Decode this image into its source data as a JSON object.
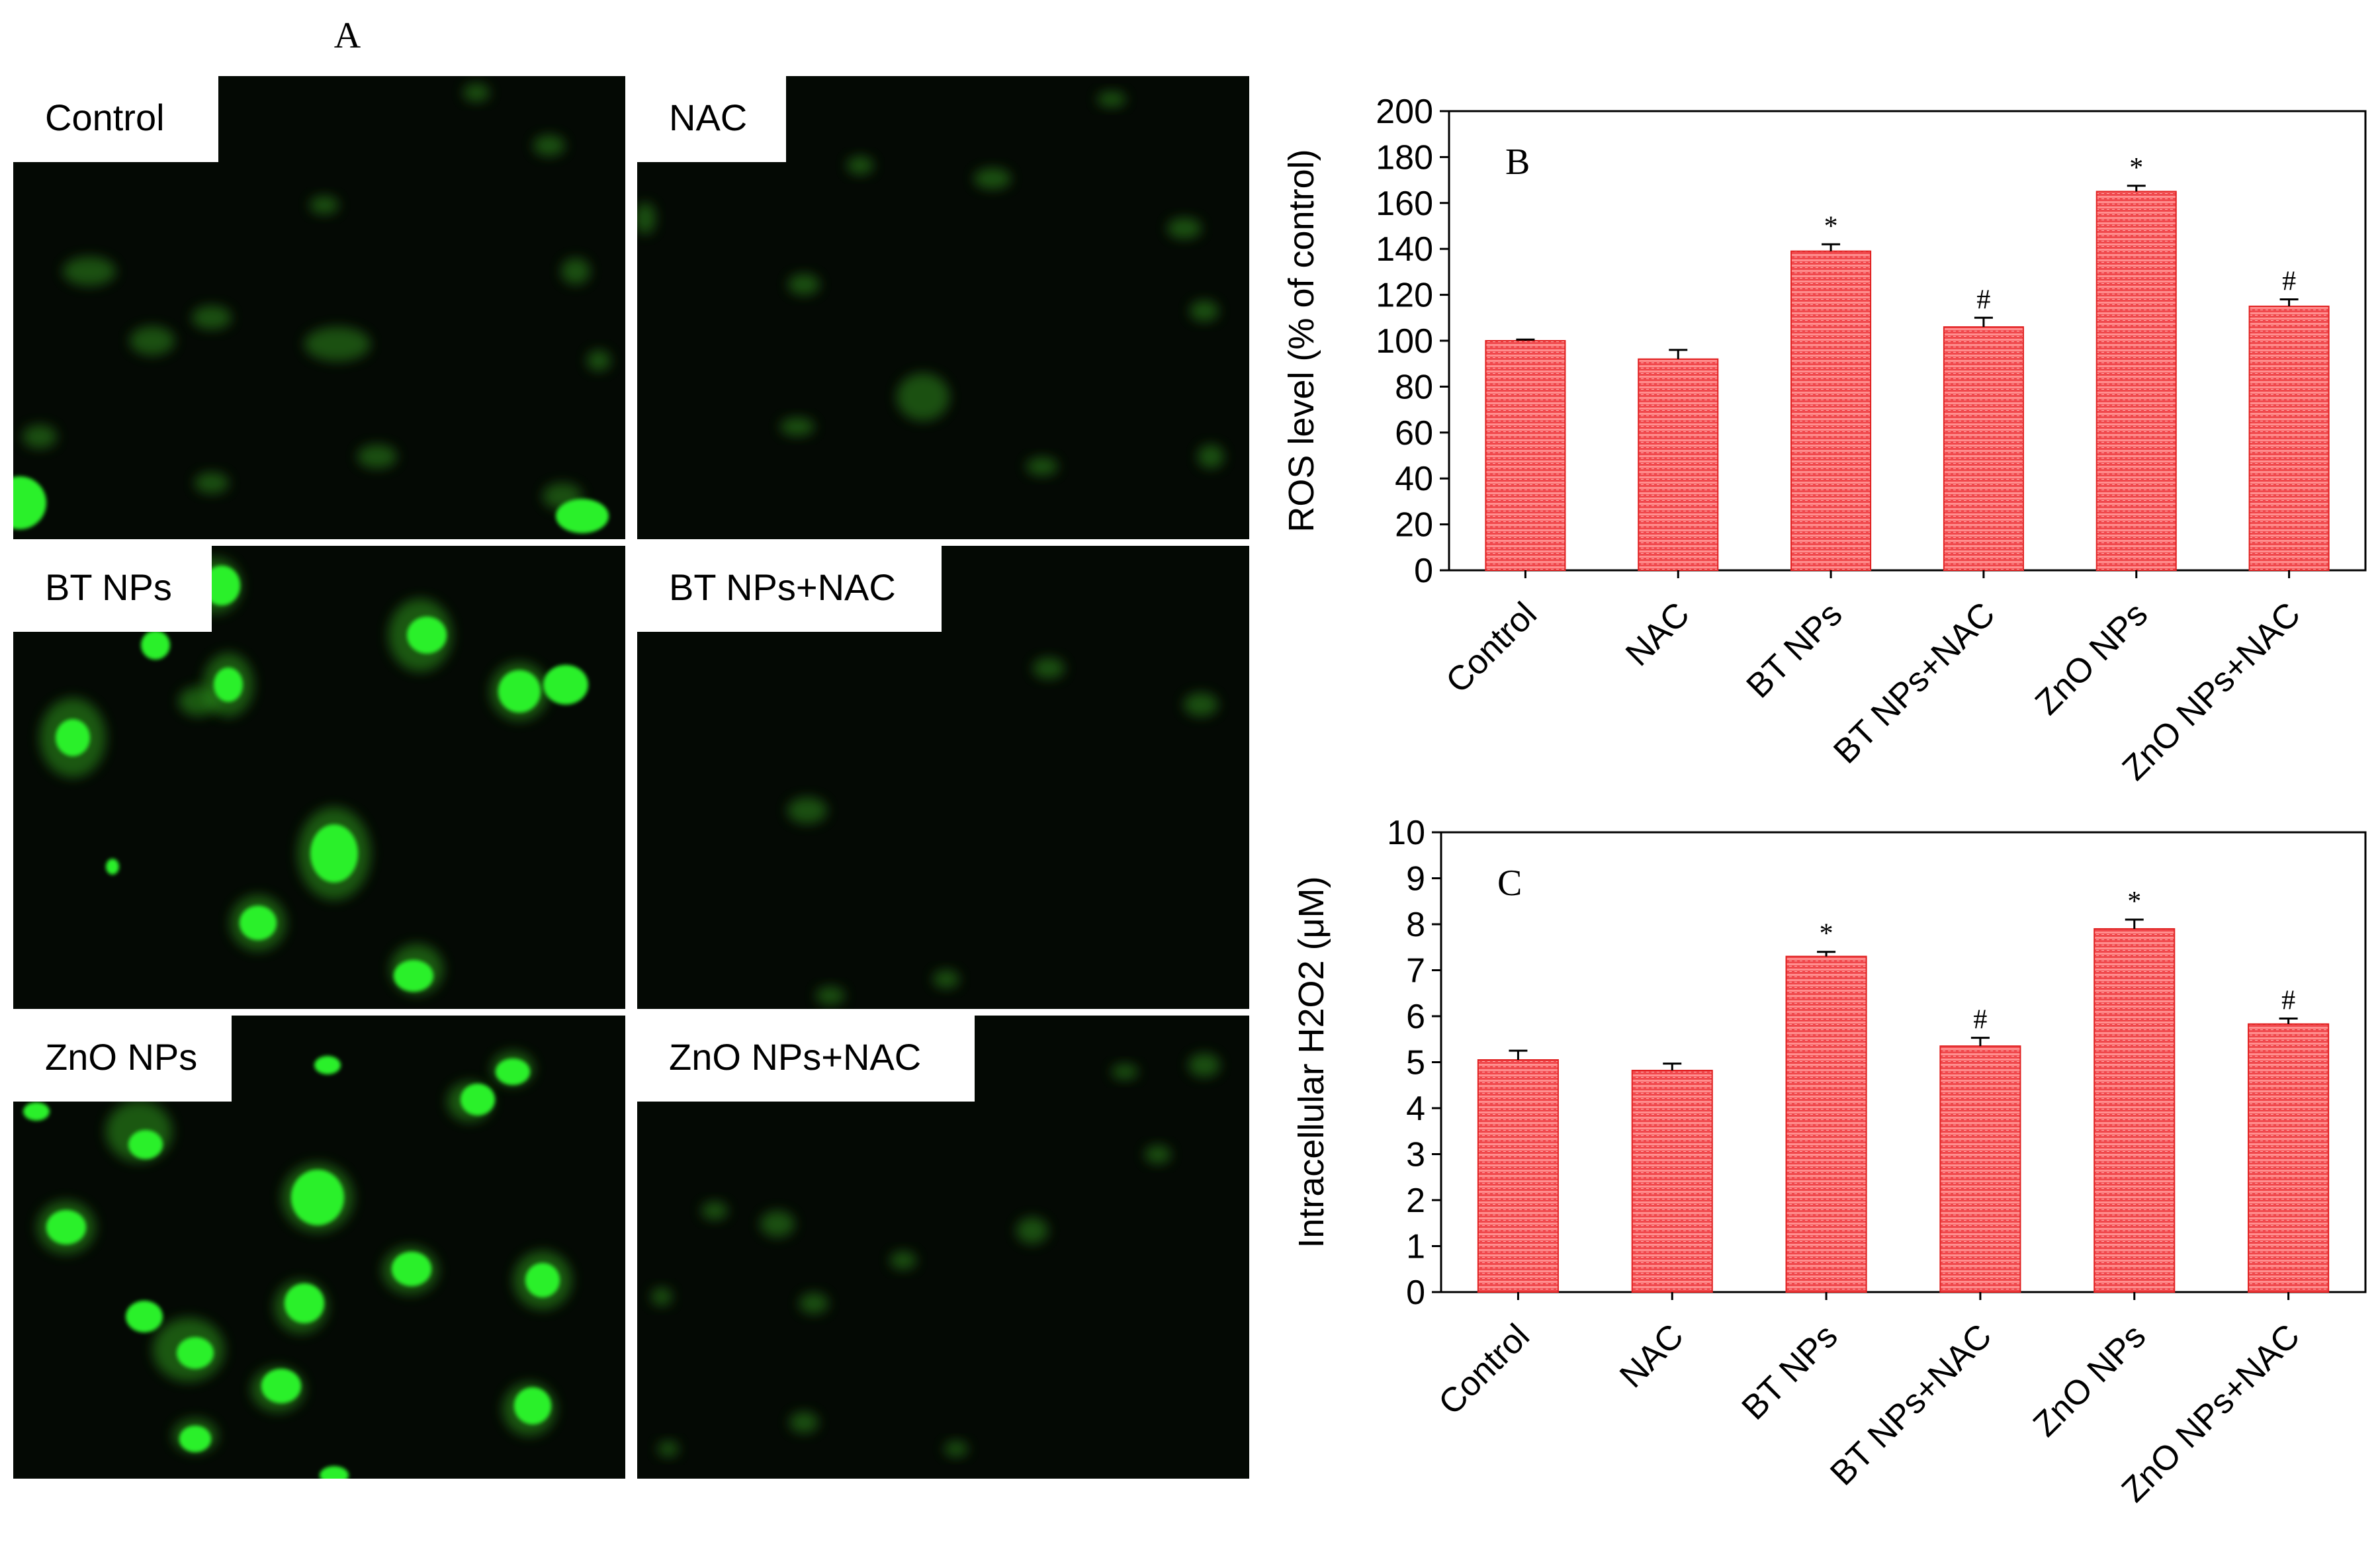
{
  "panel_a": {
    "letter": "A",
    "images": [
      {
        "label": "Control",
        "cells": [
          [
            135,
            410,
            40,
            22
          ],
          [
            230,
            515,
            34,
            22
          ],
          [
            320,
            480,
            30,
            18
          ],
          [
            490,
            310,
            22,
            14
          ],
          [
            720,
            140,
            20,
            14
          ],
          [
            830,
            220,
            24,
            16
          ],
          [
            870,
            410,
            22,
            20
          ],
          [
            905,
            545,
            18,
            16
          ],
          [
            850,
            750,
            30,
            20
          ],
          [
            570,
            690,
            30,
            18
          ],
          [
            320,
            730,
            26,
            16
          ],
          [
            510,
            520,
            50,
            26
          ],
          [
            60,
            660,
            26,
            18
          ]
        ],
        "bright": [
          [
            30,
            760,
            40,
            40
          ],
          [
            880,
            780,
            40,
            26
          ]
        ],
        "dim_color": "#2f8a1c"
      },
      {
        "label": "NAC",
        "cells": [
          [
            1395,
            600,
            40,
            36
          ],
          [
            1215,
            430,
            24,
            16
          ],
          [
            1500,
            270,
            28,
            16
          ],
          [
            1680,
            150,
            22,
            12
          ],
          [
            1820,
            470,
            22,
            16
          ],
          [
            1790,
            345,
            26,
            16
          ],
          [
            1205,
            645,
            26,
            14
          ],
          [
            1575,
            705,
            24,
            14
          ],
          [
            1830,
            690,
            20,
            18
          ],
          [
            975,
            330,
            16,
            24
          ],
          [
            1300,
            250,
            20,
            14
          ]
        ],
        "bright": [],
        "dim_color": "#2f8a1c"
      },
      {
        "label": "BT NPs",
        "cells": [
          [
            110,
            1115,
            50,
            60
          ],
          [
            505,
            1290,
            55,
            70
          ],
          [
            325,
            885,
            40,
            42
          ],
          [
            635,
            960,
            48,
            55
          ],
          [
            785,
            1045,
            44,
            44
          ],
          [
            345,
            1035,
            38,
            48
          ],
          [
            390,
            1395,
            42,
            42
          ],
          [
            680,
            1770,
            46,
            42
          ],
          [
            630,
            1465,
            40,
            38
          ],
          [
            300,
            1060,
            30,
            22
          ]
        ],
        "bright": [
          [
            110,
            1115,
            26,
            28
          ],
          [
            505,
            1290,
            36,
            44
          ],
          [
            335,
            885,
            28,
            30
          ],
          [
            645,
            960,
            30,
            28
          ],
          [
            785,
            1045,
            32,
            32
          ],
          [
            345,
            1035,
            22,
            26
          ],
          [
            390,
            1395,
            28,
            26
          ],
          [
            680,
            1770,
            28,
            26
          ],
          [
            625,
            1475,
            30,
            24
          ],
          [
            855,
            1035,
            34,
            30
          ],
          [
            235,
            975,
            22,
            22
          ],
          [
            170,
            1310,
            10,
            12
          ]
        ],
        "dim_color": "#2e9a1e"
      },
      {
        "label": "BT NPs+NAC",
        "cells": [
          [
            1160,
            1650,
            70,
            50
          ],
          [
            1220,
            1225,
            30,
            20
          ],
          [
            1255,
            1505,
            22,
            14
          ],
          [
            1430,
            1480,
            20,
            14
          ],
          [
            1585,
            1010,
            24,
            16
          ],
          [
            1815,
            1065,
            26,
            18
          ],
          [
            1300,
            1780,
            22,
            14
          ],
          [
            1750,
            1760,
            24,
            16
          ],
          [
            1035,
            1750,
            26,
            16
          ]
        ],
        "bright": [],
        "dim_color": "#2f8a1c"
      },
      {
        "label": "ZnO NPs",
        "cells": [
          [
            100,
            1855,
            44,
            40
          ],
          [
            210,
            1710,
            50,
            46
          ],
          [
            480,
            1810,
            54,
            52
          ],
          [
            455,
            1975,
            40,
            40
          ],
          [
            285,
            2040,
            54,
            48
          ],
          [
            620,
            1920,
            42,
            36
          ],
          [
            820,
            1935,
            44,
            44
          ],
          [
            800,
            2130,
            40,
            40
          ],
          [
            420,
            2100,
            40,
            34
          ],
          [
            295,
            2170,
            34,
            26
          ],
          [
            710,
            1665,
            34,
            30
          ],
          [
            775,
            1615,
            32,
            26
          ]
        ],
        "bright": [
          [
            100,
            1855,
            30,
            26
          ],
          [
            220,
            1730,
            26,
            22
          ],
          [
            480,
            1810,
            40,
            42
          ],
          [
            460,
            1970,
            30,
            30
          ],
          [
            295,
            2045,
            28,
            24
          ],
          [
            622,
            1918,
            30,
            26
          ],
          [
            820,
            1935,
            26,
            26
          ],
          [
            805,
            2125,
            28,
            28
          ],
          [
            425,
            2095,
            30,
            26
          ],
          [
            295,
            2175,
            24,
            20
          ],
          [
            722,
            1662,
            26,
            24
          ],
          [
            775,
            1620,
            26,
            20
          ],
          [
            218,
            1990,
            28,
            24
          ],
          [
            505,
            2230,
            22,
            14
          ],
          [
            495,
            1610,
            20,
            14
          ],
          [
            55,
            1680,
            20,
            14
          ]
        ],
        "dim_color": "#2e9a1e"
      },
      {
        "label": "ZnO NPs+NAC",
        "cells": [
          [
            1175,
            1850,
            26,
            20
          ],
          [
            1560,
            1860,
            24,
            20
          ],
          [
            1365,
            1905,
            20,
            14
          ],
          [
            1230,
            1970,
            22,
            16
          ],
          [
            1080,
            1830,
            20,
            14
          ],
          [
            1000,
            1960,
            16,
            14
          ],
          [
            1215,
            2150,
            22,
            16
          ],
          [
            1010,
            2190,
            16,
            12
          ],
          [
            1445,
            2190,
            18,
            12
          ],
          [
            1750,
            1745,
            20,
            14
          ],
          [
            1820,
            1610,
            24,
            18
          ],
          [
            1700,
            1620,
            20,
            12
          ]
        ],
        "bright": [],
        "dim_color": "#2f8a1c"
      }
    ]
  },
  "chart_data": [
    {
      "type": "bar",
      "panel_letter": "B",
      "categories": [
        "Control",
        "NAC",
        "BT NPs",
        "BT NPs+NAC",
        "ZnO NPs",
        "ZnO NPs+NAC"
      ],
      "values": [
        100,
        92,
        139,
        106,
        165,
        115
      ],
      "errors": [
        0.5,
        4,
        3,
        4,
        2.5,
        3
      ],
      "annotations": [
        "",
        "",
        "*",
        "#",
        "*",
        "#"
      ],
      "ylabel": "ROS level (% of control)",
      "xlabel": "",
      "ylim": [
        0,
        200
      ],
      "yticks": [
        0,
        20,
        40,
        60,
        80,
        100,
        120,
        140,
        160,
        180,
        200
      ],
      "bar_color": "#f04848",
      "grid": false
    },
    {
      "type": "bar",
      "panel_letter": "C",
      "categories": [
        "Control",
        "NAC",
        "BT NPs",
        "BT NPs+NAC",
        "ZnO NPs",
        "ZnO NPs+NAC"
      ],
      "values": [
        5.05,
        4.82,
        7.3,
        5.35,
        7.9,
        5.83
      ],
      "errors": [
        0.2,
        0.15,
        0.1,
        0.18,
        0.2,
        0.12
      ],
      "annotations": [
        "",
        "",
        "*",
        "#",
        "*",
        "#"
      ],
      "ylabel": "Intracellular H2O2 (μM)",
      "xlabel": "",
      "ylim": [
        0,
        10
      ],
      "yticks": [
        0,
        1,
        2,
        3,
        4,
        5,
        6,
        7,
        8,
        9,
        10
      ],
      "bar_color": "#f04848",
      "grid": false
    }
  ]
}
